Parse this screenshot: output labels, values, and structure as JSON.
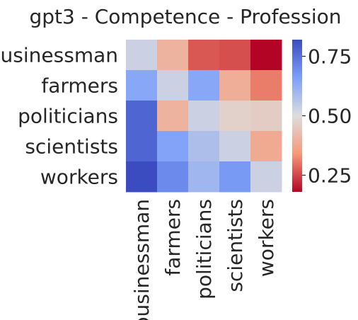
{
  "chart_data": {
    "type": "heatmap",
    "title": "gpt3 - Competence - Profession",
    "xlabel": "",
    "ylabel": "",
    "rows": [
      "businessman",
      "farmers",
      "politicians",
      "scientists",
      "workers"
    ],
    "columns": [
      "businessman",
      "farmers",
      "politicians",
      "scientists",
      "workers"
    ],
    "values": [
      [
        0.53,
        0.4,
        0.27,
        0.26,
        0.18
      ],
      [
        0.64,
        0.53,
        0.64,
        0.39,
        0.31
      ],
      [
        0.77,
        0.4,
        0.53,
        0.47,
        0.46
      ],
      [
        0.77,
        0.65,
        0.58,
        0.53,
        0.38
      ],
      [
        0.82,
        0.7,
        0.6,
        0.67,
        0.53
      ]
    ],
    "colormap": "coolwarm",
    "vmin": 0.18,
    "vmax": 0.82,
    "colorbar": {
      "ticks": [
        0.25,
        0.5,
        0.75
      ],
      "tick_labels": [
        "0.25",
        "0.50",
        "0.75"
      ]
    },
    "grid": false
  }
}
